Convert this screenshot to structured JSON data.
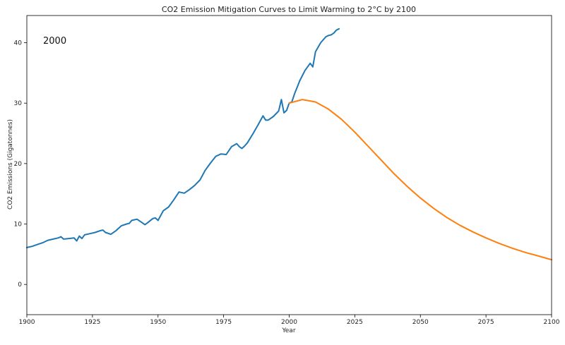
{
  "chart_data": {
    "type": "line",
    "title": "CO2 Emission Mitigation Curves to Limit Warming to 2°C by 2100",
    "xlabel": "Year",
    "ylabel": "CO2 Emissions (Gigatonnes)",
    "xlim": [
      1900,
      2100
    ],
    "ylim": [
      -5,
      44.5
    ],
    "xticks": [
      1900,
      1925,
      1950,
      1975,
      2000,
      2025,
      2050,
      2075,
      2100
    ],
    "yticks": [
      0,
      10,
      20,
      30,
      40
    ],
    "grid": false,
    "annotation": "2000",
    "series": [
      {
        "color": "#1f77b4",
        "x": [
          1900,
          1902,
          1904,
          1906,
          1908,
          1910,
          1912,
          1913,
          1914,
          1916,
          1918,
          1919,
          1920,
          1921,
          1922,
          1924,
          1926,
          1928,
          1929,
          1930,
          1932,
          1934,
          1936,
          1938,
          1939,
          1940,
          1941,
          1942,
          1944,
          1945,
          1946,
          1948,
          1949,
          1950,
          1952,
          1954,
          1956,
          1958,
          1960,
          1962,
          1964,
          1966,
          1968,
          1970,
          1972,
          1974,
          1976,
          1978,
          1980,
          1981,
          1982,
          1983,
          1984,
          1986,
          1988,
          1990,
          1991,
          1992,
          1994,
          1996,
          1997,
          1998,
          1999,
          2000,
          2001,
          2002,
          2004,
          2006,
          2008,
          2009,
          2010,
          2012,
          2014,
          2015,
          2016,
          2017,
          2018,
          2019
        ],
        "y": [
          6.1,
          6.3,
          6.6,
          6.9,
          7.3,
          7.5,
          7.7,
          7.9,
          7.5,
          7.6,
          7.7,
          7.2,
          8.0,
          7.6,
          8.2,
          8.4,
          8.6,
          8.9,
          9.0,
          8.6,
          8.3,
          8.9,
          9.7,
          10.0,
          10.1,
          10.6,
          10.7,
          10.8,
          10.2,
          9.9,
          10.2,
          10.9,
          11.0,
          10.6,
          12.2,
          12.8,
          14.0,
          15.3,
          15.1,
          15.7,
          16.4,
          17.3,
          18.9,
          20.1,
          21.2,
          21.6,
          21.5,
          22.8,
          23.3,
          22.8,
          22.5,
          22.9,
          23.4,
          24.8,
          26.3,
          27.9,
          27.2,
          27.2,
          27.8,
          28.7,
          30.6,
          28.4,
          28.8,
          30.0,
          30.2,
          31.5,
          33.7,
          35.4,
          36.6,
          36.0,
          38.5,
          40.0,
          41.0,
          41.2,
          41.3,
          41.6,
          42.1,
          42.3
        ]
      },
      {
        "color": "#ff7f0e",
        "x": [
          2000,
          2005,
          2010,
          2015,
          2020,
          2025,
          2030,
          2035,
          2040,
          2045,
          2050,
          2055,
          2060,
          2065,
          2070,
          2075,
          2080,
          2085,
          2090,
          2095,
          2100
        ],
        "y": [
          30.0,
          30.6,
          30.2,
          29.0,
          27.3,
          25.2,
          22.9,
          20.6,
          18.3,
          16.2,
          14.3,
          12.6,
          11.1,
          9.8,
          8.7,
          7.7,
          6.8,
          6.0,
          5.3,
          4.7,
          4.1
        ]
      }
    ]
  }
}
